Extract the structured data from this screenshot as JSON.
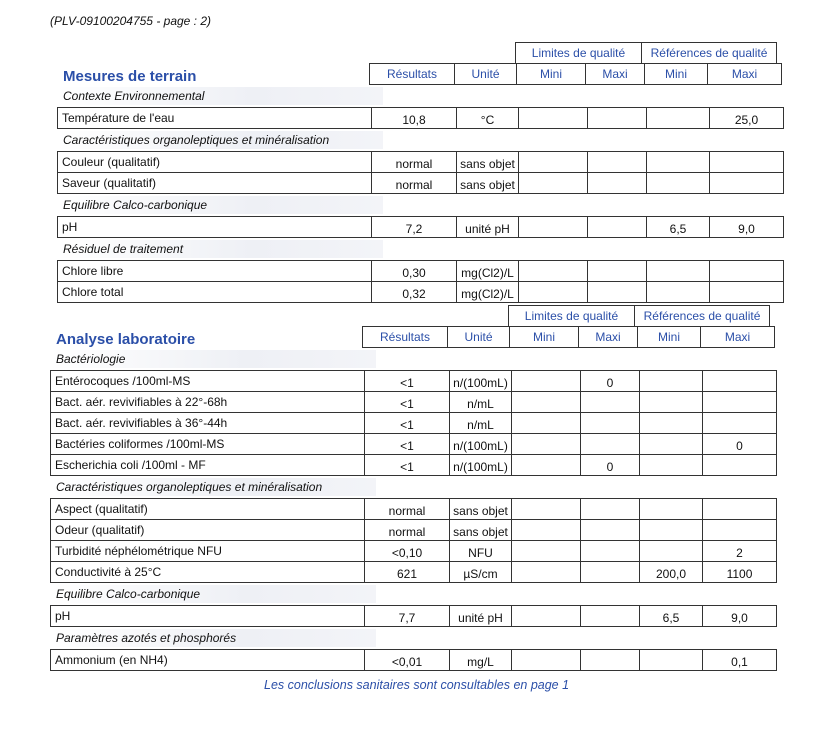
{
  "reference": "(PLV-09100204755 - page : 2)",
  "columns": {
    "group_limits": "Limites de qualité",
    "group_refs": "Références de qualité",
    "result": "Résultats",
    "unit": "Unité",
    "mini": "Mini",
    "maxi": "Maxi"
  },
  "sections": [
    {
      "title": "Mesures de terrain",
      "groups": [
        {
          "name": "Contexte Environnemental",
          "rows": [
            [
              "Température de l'eau",
              "10,8",
              "°C",
              "",
              "",
              "",
              "25,0"
            ]
          ]
        },
        {
          "name": "Caractéristiques organoleptiques et minéralisation",
          "rows": [
            [
              "Couleur (qualitatif)",
              "normal",
              "sans objet",
              "",
              "",
              "",
              ""
            ],
            [
              "Saveur (qualitatif)",
              "normal",
              "sans objet",
              "",
              "",
              "",
              ""
            ]
          ]
        },
        {
          "name": "Equilibre Calco-carbonique",
          "rows": [
            [
              "pH",
              "7,2",
              "unité pH",
              "",
              "",
              "6,5",
              "9,0"
            ]
          ]
        },
        {
          "name": "Résiduel de traitement",
          "rows": [
            [
              "Chlore libre",
              "0,30",
              "mg(Cl2)/L",
              "",
              "",
              "",
              ""
            ],
            [
              "Chlore total",
              "0,32",
              "mg(Cl2)/L",
              "",
              "",
              "",
              ""
            ]
          ]
        }
      ]
    },
    {
      "title": "Analyse laboratoire",
      "groups": [
        {
          "name": "Bactériologie",
          "rows": [
            [
              "Entérocoques /100ml-MS",
              "<1",
              "n/(100mL)",
              "",
              "0",
              "",
              ""
            ],
            [
              "Bact. aér. revivifiables à 22°-68h",
              "<1",
              "n/mL",
              "",
              "",
              "",
              ""
            ],
            [
              "Bact. aér. revivifiables à 36°-44h",
              "<1",
              "n/mL",
              "",
              "",
              "",
              ""
            ],
            [
              "Bactéries coliformes /100ml-MS",
              "<1",
              "n/(100mL)",
              "",
              "",
              "",
              "0"
            ],
            [
              "Escherichia coli /100ml - MF",
              "<1",
              "n/(100mL)",
              "",
              "0",
              "",
              ""
            ]
          ]
        },
        {
          "name": "Caractéristiques organoleptiques et minéralisation",
          "rows": [
            [
              "Aspect (qualitatif)",
              "normal",
              "sans objet",
              "",
              "",
              "",
              ""
            ],
            [
              "Odeur (qualitatif)",
              "normal",
              "sans objet",
              "",
              "",
              "",
              ""
            ],
            [
              "Turbidité néphélométrique NFU",
              "<0,10",
              "NFU",
              "",
              "",
              "",
              "2"
            ],
            [
              "Conductivité à 25°C",
              "621",
              "µS/cm",
              "",
              "",
              "200,0",
              "1100"
            ]
          ]
        },
        {
          "name": "Equilibre Calco-carbonique",
          "rows": [
            [
              "pH",
              "7,7",
              "unité pH",
              "",
              "",
              "6,5",
              "9,0"
            ]
          ]
        },
        {
          "name": "Paramètres azotés et phosphorés",
          "rows": [
            [
              "Ammonium (en NH4)",
              "<0,01",
              "mg/L",
              "",
              "",
              "",
              "0,1"
            ]
          ]
        }
      ]
    }
  ],
  "footer": "Les conclusions sanitaires sont consultables en page 1"
}
